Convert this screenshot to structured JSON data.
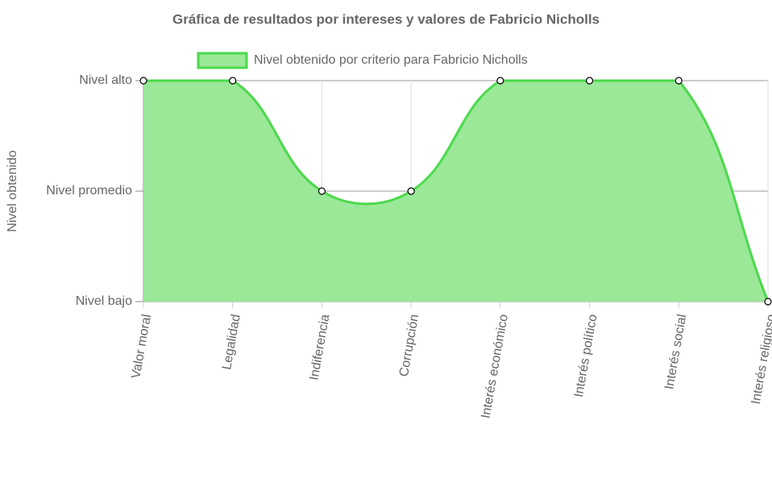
{
  "chart_data": {
    "type": "line",
    "title": "Gráfica de resultados por intereses y valores de Fabricio Nicholls",
    "y_label": "Nivel obtenido",
    "categories": [
      "Valor moral",
      "Legalidad",
      "Indiferencia",
      "Corrupción",
      "Interés económico",
      "Interés político",
      "Interés social",
      "Interés religioso"
    ],
    "series": [
      {
        "name": "Nivel obtenido por criterio para Fabricio Nicholls",
        "color": "#4cd94c",
        "fill": "#9ae898",
        "values": [
          3,
          3,
          2,
          2,
          3,
          3,
          3,
          1
        ]
      }
    ],
    "ylim": [
      1,
      3
    ],
    "yticks": [
      {
        "value": 1,
        "label": "Nivel bajo"
      },
      {
        "value": 2,
        "label": "Nivel promedio"
      },
      {
        "value": 3,
        "label": "Nivel alto"
      }
    ],
    "grid": true,
    "legend": "top"
  }
}
